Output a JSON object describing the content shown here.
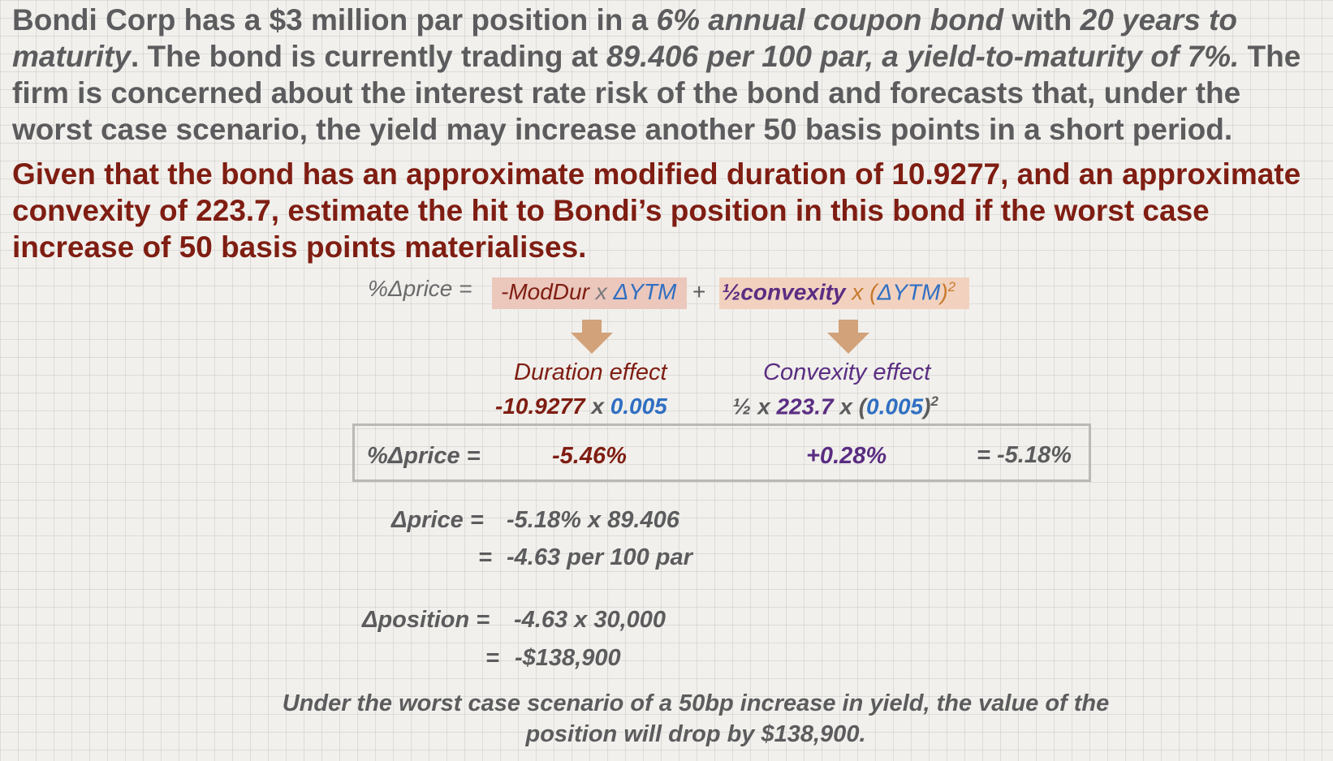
{
  "intro": {
    "s1": "Bondi Corp has a $3 million par position in a ",
    "s2": "6% annual coupon bond",
    "s3": " with ",
    "s4": "20 years to maturity",
    "s5": ".  The bond is currently trading at ",
    "s6": "89.406 per 100 par, a yield-to-maturity of 7%.",
    "s7": " The firm is concerned about the interest rate risk of the bond and forecasts that, under the worst case scenario, the yield may increase another 50 basis points in a short period."
  },
  "question": "Given that the bond has an approximate modified duration of 10.9277, and an approximate convexity of 223.7, estimate the hit to Bondi’s position in this bond if the worst case increase of 50 basis points materialises.",
  "formula": {
    "label": "%Δprice =",
    "dur_modur": "-ModDur",
    "dur_x": " x ",
    "dur_dytm": "ΔYTM",
    "plus": "+",
    "cvx_half": "½",
    "cvx_word": "convexity",
    "cvx_x": " x (",
    "cvx_dytm": "ΔYTM",
    "cvx_close": ")",
    "cvx_sq": "2"
  },
  "duration_effect": {
    "title": "Duration effect",
    "modur": "-10.9277",
    "x": " x ",
    "dytm": "0.005"
  },
  "convexity_effect": {
    "title": "Convexity effect",
    "half": "½ x ",
    "convexity": "223.7",
    "x_open": " x (",
    "dytm": "0.005",
    "close": ")",
    "sq": "2"
  },
  "result": {
    "label": "%Δprice =",
    "duration": "-5.46%",
    "convexity": "+0.28%",
    "total": "= -5.18%"
  },
  "price_calc": {
    "label": "Δprice =",
    "line1": "-5.18% x 89.406",
    "eq": "=",
    "line2": "-4.63 per 100 par"
  },
  "position_calc": {
    "label": "Δposition =",
    "line1": "-4.63 x 30,000",
    "eq": "=",
    "line2": "-$138,900"
  },
  "conclusion": "Under the worst case scenario of a 50bp increase in yield, the value of the position will drop by $138,900.",
  "colors": {
    "question_red": "#7f1d12",
    "blue": "#2f6fc2",
    "purple": "#5a2d82",
    "orange": "#c67a2c",
    "arrow": "#d2a27a"
  }
}
